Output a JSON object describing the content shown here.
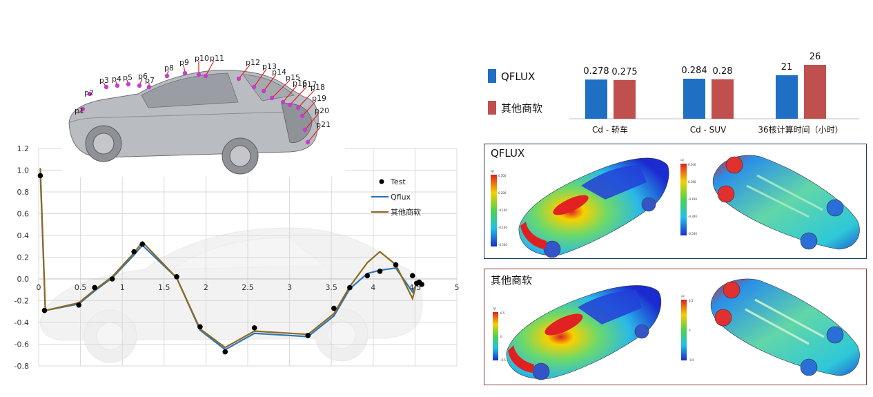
{
  "chart_data": [
    {
      "type": "line",
      "title": "",
      "xlabel": "",
      "ylabel": "",
      "xlim": [
        0,
        5
      ],
      "ylim": [
        -0.8,
        1.2
      ],
      "x_ticks": [
        "0",
        "0.5",
        "1",
        "1.5",
        "2",
        "2.5",
        "3",
        "3.5",
        "4",
        "4.5",
        "5"
      ],
      "y_ticks": [
        "1.2",
        "1.0",
        "0.8",
        "0.6",
        "0.4",
        "0.2",
        "0.0",
        "-0.2",
        "-0.4",
        "-0.6",
        "-0.8"
      ],
      "grid": true,
      "legend_position": "top-right",
      "series": [
        {
          "name": "Test",
          "kind": "scatter",
          "color": "#000000",
          "points": [
            [
              0.02,
              0.95
            ],
            [
              0.07,
              -0.29
            ],
            [
              0.48,
              -0.24
            ],
            [
              0.67,
              -0.08
            ],
            [
              0.88,
              0.0
            ],
            [
              1.14,
              0.25
            ],
            [
              1.24,
              0.32
            ],
            [
              1.65,
              0.02
            ],
            [
              1.93,
              -0.44
            ],
            [
              2.23,
              -0.67
            ],
            [
              2.58,
              -0.45
            ],
            [
              3.22,
              -0.52
            ],
            [
              3.53,
              -0.27
            ],
            [
              3.72,
              -0.08
            ],
            [
              3.93,
              0.03
            ],
            [
              4.08,
              0.07
            ],
            [
              4.27,
              0.13
            ],
            [
              4.47,
              0.03
            ],
            [
              4.52,
              -0.04
            ],
            [
              4.55,
              -0.03
            ],
            [
              4.58,
              -0.05
            ]
          ]
        },
        {
          "name": "Qflux",
          "kind": "line",
          "color": "#2e75b6",
          "points": [
            [
              0.02,
              0.97
            ],
            [
              0.08,
              -0.29
            ],
            [
              0.48,
              -0.23
            ],
            [
              0.67,
              -0.11
            ],
            [
              0.88,
              0.01
            ],
            [
              1.14,
              0.22
            ],
            [
              1.24,
              0.31
            ],
            [
              1.65,
              0.01
            ],
            [
              1.93,
              -0.47
            ],
            [
              2.23,
              -0.65
            ],
            [
              2.58,
              -0.5
            ],
            [
              3.22,
              -0.53
            ],
            [
              3.53,
              -0.34
            ],
            [
              3.72,
              -0.09
            ],
            [
              3.93,
              0.05
            ],
            [
              4.08,
              0.08
            ],
            [
              4.27,
              0.1
            ],
            [
              4.47,
              -0.12
            ],
            [
              4.52,
              -0.04
            ],
            [
              4.58,
              -0.04
            ]
          ]
        },
        {
          "name": "其他商软",
          "kind": "line",
          "color": "#8c6a1e",
          "points": [
            [
              0.02,
              1.02
            ],
            [
              0.08,
              -0.29
            ],
            [
              0.48,
              -0.22
            ],
            [
              0.67,
              -0.1
            ],
            [
              0.88,
              0.02
            ],
            [
              1.14,
              0.24
            ],
            [
              1.24,
              0.34
            ],
            [
              1.65,
              0.01
            ],
            [
              1.93,
              -0.46
            ],
            [
              2.23,
              -0.63
            ],
            [
              2.58,
              -0.48
            ],
            [
              3.22,
              -0.51
            ],
            [
              3.53,
              -0.32
            ],
            [
              3.72,
              -0.07
            ],
            [
              3.93,
              0.15
            ],
            [
              4.08,
              0.25
            ],
            [
              4.27,
              0.13
            ],
            [
              4.47,
              -0.18
            ],
            [
              4.52,
              -0.03
            ],
            [
              4.58,
              -0.04
            ]
          ]
        }
      ],
      "probe_labels": [
        "p1",
        "p2",
        "p3",
        "p4",
        "p5",
        "p6",
        "p7",
        "p8",
        "p9",
        "p10",
        "p11",
        "p12",
        "p13",
        "p14",
        "p15",
        "p16",
        "p17",
        "p18",
        "p19",
        "p20",
        "p21"
      ]
    },
    {
      "type": "bar",
      "title": "",
      "categories": [
        "Cd - 轿车",
        "Cd - SUV",
        "36核计算时间（小时）"
      ],
      "legend_position": "left",
      "series": [
        {
          "name": "QFLUX",
          "color": "#1f6fc4",
          "values": [
            0.278,
            0.284,
            21
          ],
          "labels": [
            "0.278",
            "0.284",
            "21"
          ]
        },
        {
          "name": "其他商软",
          "color": "#c0504d",
          "values": [
            0.275,
            0.28,
            26
          ],
          "labels": [
            "0.275",
            "0.28",
            "26"
          ]
        }
      ]
    }
  ],
  "contours": {
    "qflux_title": "QFLUX",
    "other_title": "其他商软",
    "colorbar_qflux_title": "cp",
    "colorbar_other_title": "cp",
    "qflux_ticks_top": [
      "0.500",
      "0.200",
      "-0.100",
      "-0.100",
      "-0.500"
    ],
    "qflux_ticks_bottom": [
      "0.500",
      "0.200",
      "-0.100",
      "-0.300",
      "-0.500"
    ],
    "other_ticks_top": [
      "0.5",
      "0",
      "-0.5"
    ],
    "other_ticks_bottom": [
      "0.5",
      "0",
      "-0.5"
    ],
    "qflux_border_color": "#1f3864",
    "other_border_color": "#8b3a3a"
  }
}
